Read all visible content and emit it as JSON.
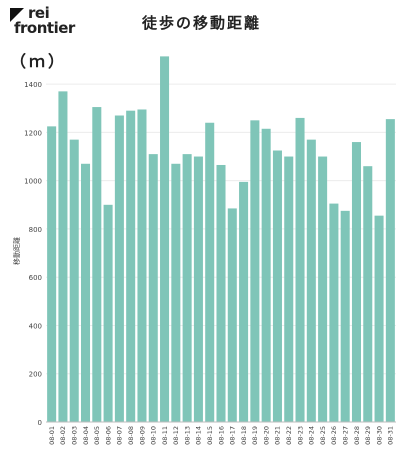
{
  "brand": {
    "line1": "rei",
    "line2": "frontier"
  },
  "title": "徒歩の移動距離",
  "unit_label": "（ｍ）",
  "colors": {
    "bar": "#7fc5b8",
    "grid": "#ececec",
    "axis": "#bdbdbd",
    "text": "#444444"
  },
  "chart_data": {
    "type": "bar",
    "ylabel": "移動距離",
    "ylim": [
      0,
      1500
    ],
    "yticks": [
      0,
      200,
      400,
      600,
      800,
      1000,
      1200,
      1400
    ],
    "grid": true,
    "categories": [
      "08-01",
      "08-02",
      "08-03",
      "08-04",
      "08-05",
      "08-06",
      "08-07",
      "08-08",
      "08-09",
      "08-10",
      "08-11",
      "08-12",
      "08-13",
      "08-14",
      "08-15",
      "08-16",
      "08-17",
      "08-18",
      "08-19",
      "08-20",
      "08-21",
      "08-22",
      "08-23",
      "08-24",
      "08-25",
      "08-26",
      "08-27",
      "08-28",
      "08-29",
      "08-30",
      "08-31"
    ],
    "values": [
      1225,
      1370,
      1170,
      1070,
      1305,
      900,
      1270,
      1290,
      1295,
      1110,
      1515,
      1070,
      1110,
      1100,
      1240,
      1065,
      885,
      995,
      1250,
      1215,
      1125,
      1100,
      1260,
      1170,
      1100,
      905,
      875,
      1160,
      1060,
      855,
      1255
    ]
  }
}
